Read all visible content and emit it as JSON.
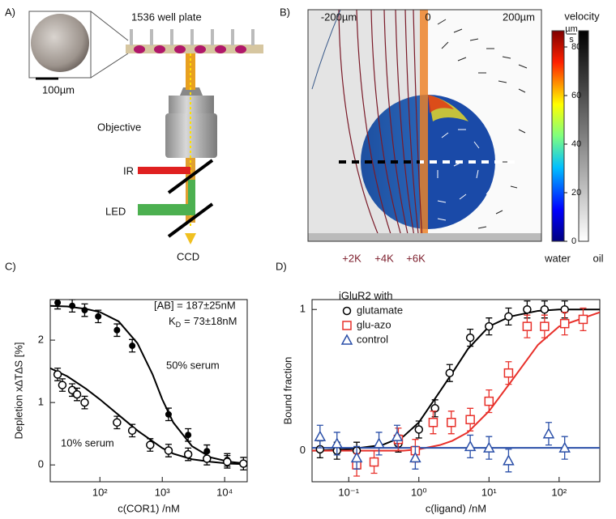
{
  "panel_a": {
    "label": "A)",
    "plate": "1536 well plate",
    "scale": "100µm",
    "objective": "Objective",
    "ir": "IR",
    "led": "LED",
    "ccd": "CCD"
  },
  "panel_b": {
    "label": "B)",
    "xticks": [
      "-200µm",
      "0",
      "200µm"
    ],
    "colorbar_title": "velocity",
    "unit_num": "µm",
    "unit_den": "s",
    "colorbar_ticks": [
      0,
      20,
      40,
      60,
      80
    ],
    "contours": [
      "+2K",
      "+4K",
      "+6K"
    ],
    "water": "water",
    "oil": "oil"
  },
  "chart_data": [
    {
      "type": "scatter",
      "panel_label": "C)",
      "xlabel": "c(COR1) /nM",
      "ylabel": "Depletion x∆T∆S [%]",
      "xscale": "log",
      "xlim": [
        16,
        23000
      ],
      "ylim": [
        -0.27,
        2.65
      ],
      "xticks": [
        {
          "value": 100,
          "label": "10²"
        },
        {
          "value": 1000,
          "label": "10³"
        },
        {
          "value": 10000,
          "label": "10⁴"
        }
      ],
      "yticks": [
        0,
        1,
        2
      ],
      "annotations": {
        "ab": "[AB] = 187±25nM",
        "kd_symbol": "K",
        "kd_subscript": "D",
        "kd_value": "= 73±18nM"
      },
      "series": [
        {
          "name": "50% serum",
          "color": "#000000",
          "marker": "filled-circle",
          "x": [
            21,
            36,
            57,
            94,
            188,
            330,
            1260,
            2600,
            5200,
            11000
          ],
          "values": [
            2.6,
            2.55,
            2.48,
            2.38,
            2.16,
            1.91,
            0.81,
            0.48,
            0.22,
            0.08
          ],
          "errors": [
            0.1,
            0.1,
            0.1,
            0.1,
            0.1,
            0.1,
            0.1,
            0.1,
            0.1,
            0.1
          ]
        },
        {
          "name": "10% serum",
          "color": "#000000",
          "marker": "open-circle",
          "x": [
            21,
            25,
            36,
            43,
            57,
            188,
            330,
            640,
            1260,
            2600,
            5200,
            11000,
            20000
          ],
          "values": [
            1.45,
            1.28,
            1.2,
            1.13,
            1.0,
            0.68,
            0.55,
            0.32,
            0.23,
            0.17,
            0.1,
            0.05,
            0.02
          ],
          "errors": [
            0.1,
            0.1,
            0.1,
            0.1,
            0.1,
            0.1,
            0.1,
            0.1,
            0.1,
            0.1,
            0.1,
            0.1,
            0.1
          ]
        }
      ],
      "fits": [
        {
          "color": "#000000",
          "x": [
            16,
            30,
            60,
            100,
            200,
            400,
            700,
            1000,
            1500,
            3000,
            6000,
            12000,
            23000
          ],
          "values": [
            2.55,
            2.54,
            2.5,
            2.45,
            2.3,
            1.95,
            1.45,
            1.05,
            0.68,
            0.3,
            0.12,
            0.05,
            0.02
          ]
        },
        {
          "color": "#000000",
          "x": [
            16,
            30,
            60,
            100,
            200,
            400,
            700,
            1000,
            1500,
            3000,
            6000,
            12000,
            23000
          ],
          "values": [
            1.55,
            1.42,
            1.22,
            1.05,
            0.8,
            0.55,
            0.38,
            0.27,
            0.18,
            0.09,
            0.05,
            0.02,
            0.01
          ]
        }
      ]
    },
    {
      "type": "scatter",
      "panel_label": "D)",
      "xlabel": "c(ligand) /nM",
      "ylabel": "Bound fraction",
      "xscale": "log",
      "xlim": [
        0.03,
        380
      ],
      "ylim": [
        -0.22,
        1.07
      ],
      "xticks": [
        {
          "value": 0.1,
          "label": "10⁻¹"
        },
        {
          "value": 1,
          "label": "10⁰"
        },
        {
          "value": 10,
          "label": "10¹"
        },
        {
          "value": 100,
          "label": "10²"
        }
      ],
      "yticks": [
        0,
        1
      ],
      "legend_title": "iGluR2 with",
      "series": [
        {
          "name": "glutamate",
          "color": "#000000",
          "marker": "open-circle",
          "x": [
            0.039,
            0.068,
            0.13,
            0.51,
            1,
            1.7,
            2.75,
            5.4,
            10,
            19,
            35,
            62,
            120
          ],
          "values": [
            0.01,
            0.0,
            0.0,
            0.05,
            0.15,
            0.3,
            0.55,
            0.8,
            0.88,
            0.95,
            1.0,
            1.0,
            1.0
          ],
          "errors": [
            0.06,
            0.06,
            0.06,
            0.06,
            0.06,
            0.06,
            0.06,
            0.06,
            0.06,
            0.06,
            0.06,
            0.06,
            0.06
          ]
        },
        {
          "name": "glu-azo",
          "color": "#e8302a",
          "marker": "open-square",
          "x": [
            0.13,
            0.23,
            0.51,
            0.89,
            1.6,
            2.9,
            5.4,
            10,
            19,
            35,
            62,
            120,
            220
          ],
          "values": [
            -0.1,
            -0.08,
            0.08,
            0.0,
            0.2,
            0.2,
            0.22,
            0.35,
            0.55,
            0.88,
            0.88,
            0.9,
            0.93
          ],
          "errors": [
            0.08,
            0.08,
            0.08,
            0.08,
            0.08,
            0.08,
            0.08,
            0.08,
            0.08,
            0.08,
            0.08,
            0.08,
            0.08
          ]
        },
        {
          "name": "control",
          "color": "#2a4fa8",
          "marker": "open-triangle",
          "x": [
            0.039,
            0.068,
            0.13,
            0.27,
            0.49,
            0.89,
            5.4,
            10,
            19,
            71,
            120
          ],
          "values": [
            0.1,
            0.05,
            -0.05,
            0.05,
            0.1,
            -0.05,
            0.03,
            0.02,
            -0.07,
            0.12,
            0.02
          ],
          "errors": [
            0.08,
            0.08,
            0.08,
            0.08,
            0.08,
            0.08,
            0.08,
            0.08,
            0.08,
            0.08,
            0.08
          ]
        }
      ],
      "fits": [
        {
          "color": "#000000",
          "x": [
            0.03,
            0.1,
            0.3,
            0.6,
            1,
            2,
            3,
            5,
            10,
            20,
            50,
            100,
            380
          ],
          "values": [
            0.0,
            0.01,
            0.04,
            0.1,
            0.2,
            0.42,
            0.55,
            0.72,
            0.88,
            0.95,
            0.99,
            1.0,
            1.0
          ]
        },
        {
          "color": "#e8302a",
          "x": [
            0.03,
            0.1,
            0.3,
            0.6,
            1,
            2,
            3,
            5,
            10,
            20,
            50,
            100,
            380
          ],
          "values": [
            0.0,
            0.0,
            0.0,
            0.0,
            0.01,
            0.04,
            0.07,
            0.13,
            0.28,
            0.48,
            0.75,
            0.88,
            0.98
          ]
        },
        {
          "color": "#2a4fa8",
          "x": [
            0.03,
            380
          ],
          "values": [
            0.02,
            0.02
          ]
        }
      ]
    }
  ]
}
